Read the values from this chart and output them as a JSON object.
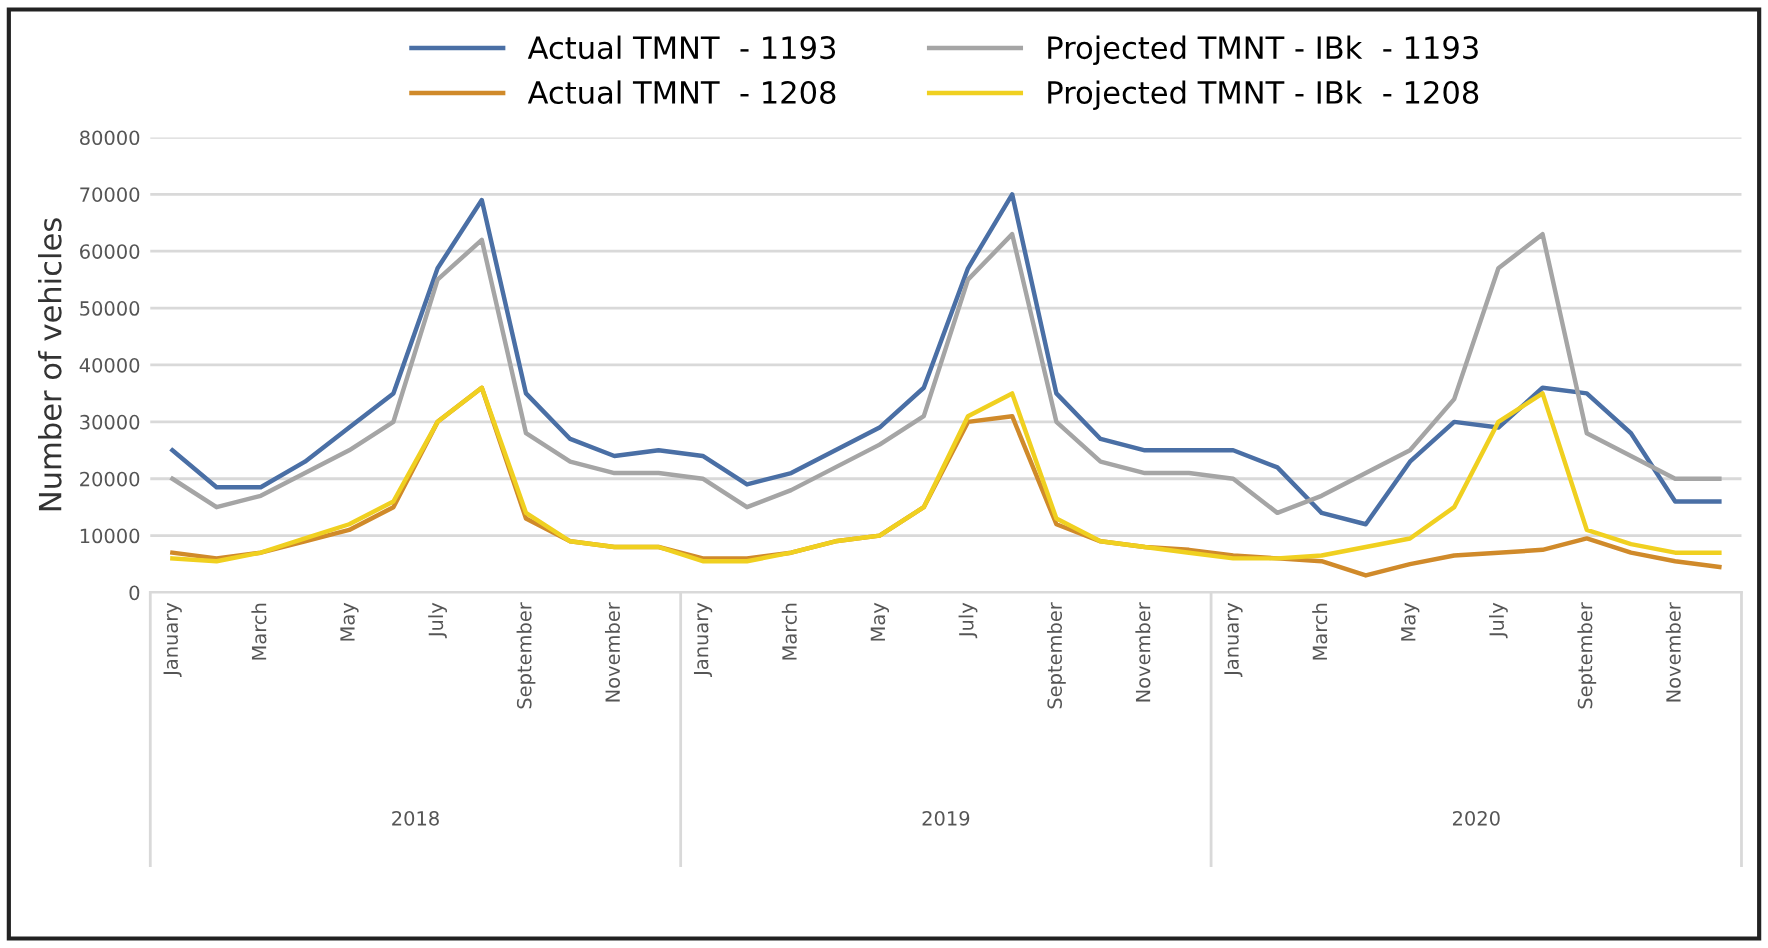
{
  "chart_data": {
    "type": "line",
    "ylabel": "Number of vehicles",
    "categories": [
      "January",
      null,
      "March",
      null,
      "May",
      null,
      "July",
      null,
      "September",
      null,
      "November",
      null,
      "January",
      null,
      "March",
      null,
      "May",
      null,
      "July",
      null,
      "September",
      null,
      "November",
      null,
      "January",
      null,
      "March",
      null,
      "May",
      null,
      "July",
      null,
      "September",
      null,
      "November",
      null
    ],
    "series": [
      {
        "name": "Actual TMNT  - 1193",
        "color": "#4a6fa5",
        "values": [
          25000,
          18500,
          18500,
          23000,
          29000,
          35000,
          57000,
          69000,
          35000,
          27000,
          24000,
          25000,
          24000,
          19000,
          21000,
          25000,
          29000,
          36000,
          57000,
          70000,
          35000,
          27000,
          25000,
          25000,
          25000,
          22000,
          14000,
          12000,
          23000,
          30000,
          29000,
          36000,
          35000,
          28000,
          16000,
          16000
        ]
      },
      {
        "name": "Actual TMNT  - 1208",
        "color": "#d08a2a",
        "values": [
          7000,
          6000,
          7000,
          9000,
          11000,
          15000,
          30000,
          36000,
          13000,
          9000,
          8000,
          8000,
          6000,
          6000,
          7000,
          9000,
          10000,
          15000,
          30000,
          31000,
          12000,
          9000,
          8000,
          7500,
          6500,
          6000,
          5500,
          3000,
          5000,
          6500,
          7000,
          7500,
          9500,
          7000,
          5500,
          4500
        ]
      },
      {
        "name": "Projected TMNT - IBk  - 1193",
        "color": "#a5a5a5",
        "values": [
          20000,
          15000,
          17000,
          21000,
          25000,
          30000,
          55000,
          62000,
          28000,
          23000,
          21000,
          21000,
          20000,
          15000,
          18000,
          22000,
          26000,
          31000,
          55000,
          63000,
          30000,
          23000,
          21000,
          21000,
          20000,
          14000,
          17000,
          21000,
          25000,
          34000,
          57000,
          63000,
          28000,
          24000,
          20000,
          20000
        ]
      },
      {
        "name": "Projected TMNT - IBk  - 1208",
        "color": "#f0d020",
        "values": [
          6000,
          5500,
          7000,
          9500,
          12000,
          16000,
          30000,
          36000,
          14000,
          9000,
          8000,
          8000,
          5500,
          5500,
          7000,
          9000,
          10000,
          15000,
          31000,
          35000,
          13000,
          9000,
          8000,
          7000,
          6000,
          6000,
          6500,
          8000,
          9500,
          15000,
          30000,
          35000,
          11000,
          8500,
          7000,
          7000
        ]
      }
    ],
    "ylim": [
      0,
      80000
    ],
    "yticks": [
      0,
      10000,
      20000,
      30000,
      40000,
      50000,
      60000,
      70000,
      80000
    ],
    "grid": "y",
    "legend": "top",
    "marker": "none",
    "line_style": "solid",
    "annotations": [
      "2018",
      "2019",
      "2020"
    ]
  }
}
